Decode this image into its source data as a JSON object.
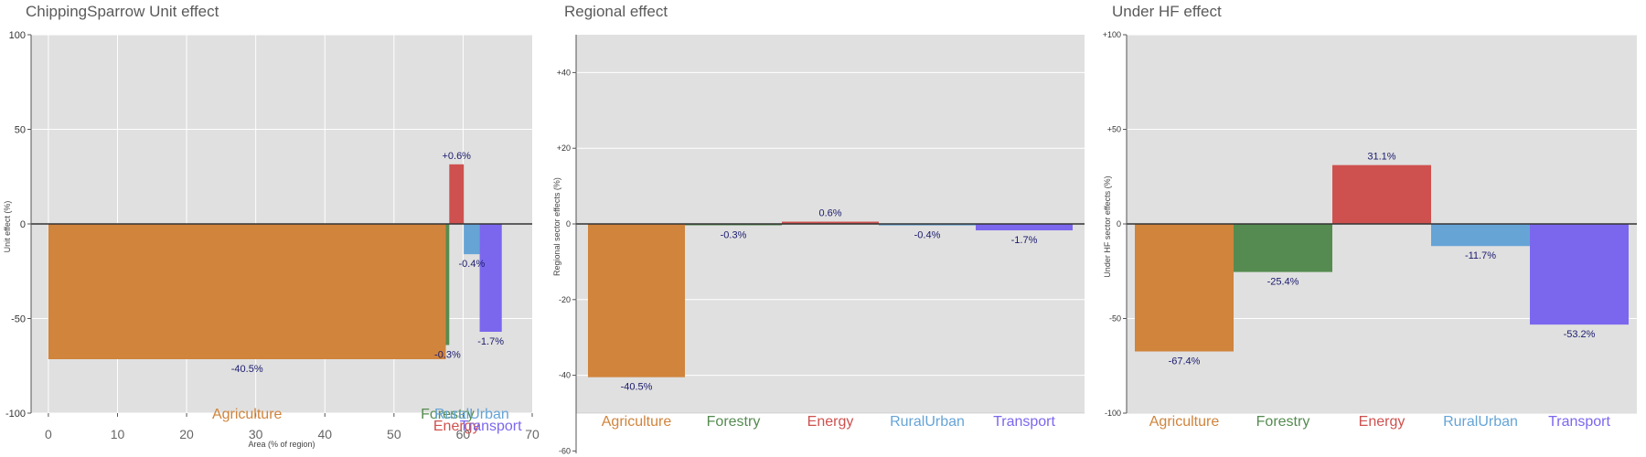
{
  "chart_data": [
    {
      "type": "bar",
      "title": "ChippingSparrow Unit effect",
      "xlabel": "Area (% of region)",
      "ylabel": "Unit effect (%)",
      "xlim": [
        -2.5,
        70
      ],
      "ylim": [
        -100,
        100
      ],
      "xticks": [
        "0",
        "10",
        "20",
        "30",
        "40",
        "50",
        "60",
        "70"
      ],
      "yticks": [
        "-100",
        "-50",
        "0",
        "50",
        "100"
      ],
      "bars": [
        {
          "category": "Agriculture",
          "x_start": 0.0,
          "x_end": 57.5,
          "value": -71.5,
          "label": "-40.5%"
        },
        {
          "category": "Forestry",
          "x_start": 57.5,
          "x_end": 58.0,
          "value": -64.0,
          "label": "-0.3%"
        },
        {
          "category": "Energy",
          "x_start": 58.0,
          "x_end": 60.1,
          "value": 31.5,
          "label": "+0.6%"
        },
        {
          "category": "RuralUrban",
          "x_start": 60.1,
          "x_end": 62.4,
          "value": -16.0,
          "label": "-0.4%"
        },
        {
          "category": "Transport",
          "x_start": 62.4,
          "x_end": 65.6,
          "value": -57.0,
          "label": "-1.7%"
        }
      ]
    },
    {
      "type": "bar",
      "title": "Regional effect",
      "xlabel": "",
      "ylabel": "Regional sector effects (%)",
      "ylim": [
        -60,
        50
      ],
      "yticks": [
        "-60",
        "-40",
        "-20",
        "0",
        "+20",
        "+40"
      ],
      "categories": [
        "Agriculture",
        "Forestry",
        "Energy",
        "RuralUrban",
        "Transport"
      ],
      "values": [
        -40.5,
        -0.3,
        0.6,
        -0.4,
        -1.7
      ],
      "labels": [
        "-40.5%",
        "-0.3%",
        "0.6%",
        "-0.4%",
        "-1.7%"
      ]
    },
    {
      "type": "bar",
      "title": "Under HF effect",
      "xlabel": "",
      "ylabel": "Under HF sector effects (%)",
      "ylim": [
        -100,
        100
      ],
      "yticks": [
        "-100",
        "-50",
        "0",
        "+50",
        "+100"
      ],
      "categories": [
        "Agriculture",
        "Forestry",
        "Energy",
        "RuralUrban",
        "Transport"
      ],
      "values": [
        -67.4,
        -25.4,
        31.1,
        -11.7,
        -53.2
      ],
      "labels": [
        "-67.4%",
        "-25.4%",
        "31.1%",
        "-11.7%",
        "-53.2%"
      ]
    }
  ],
  "colors": {
    "Agriculture": "#D0843C",
    "Forestry": "#558B50",
    "Energy": "#CE514F",
    "RuralUrban": "#66A4D6",
    "Transport": "#7B67EE",
    "panel_bg": "#E0E0E0",
    "zero_line": "#333333",
    "label_text": "#1a1a6e"
  }
}
